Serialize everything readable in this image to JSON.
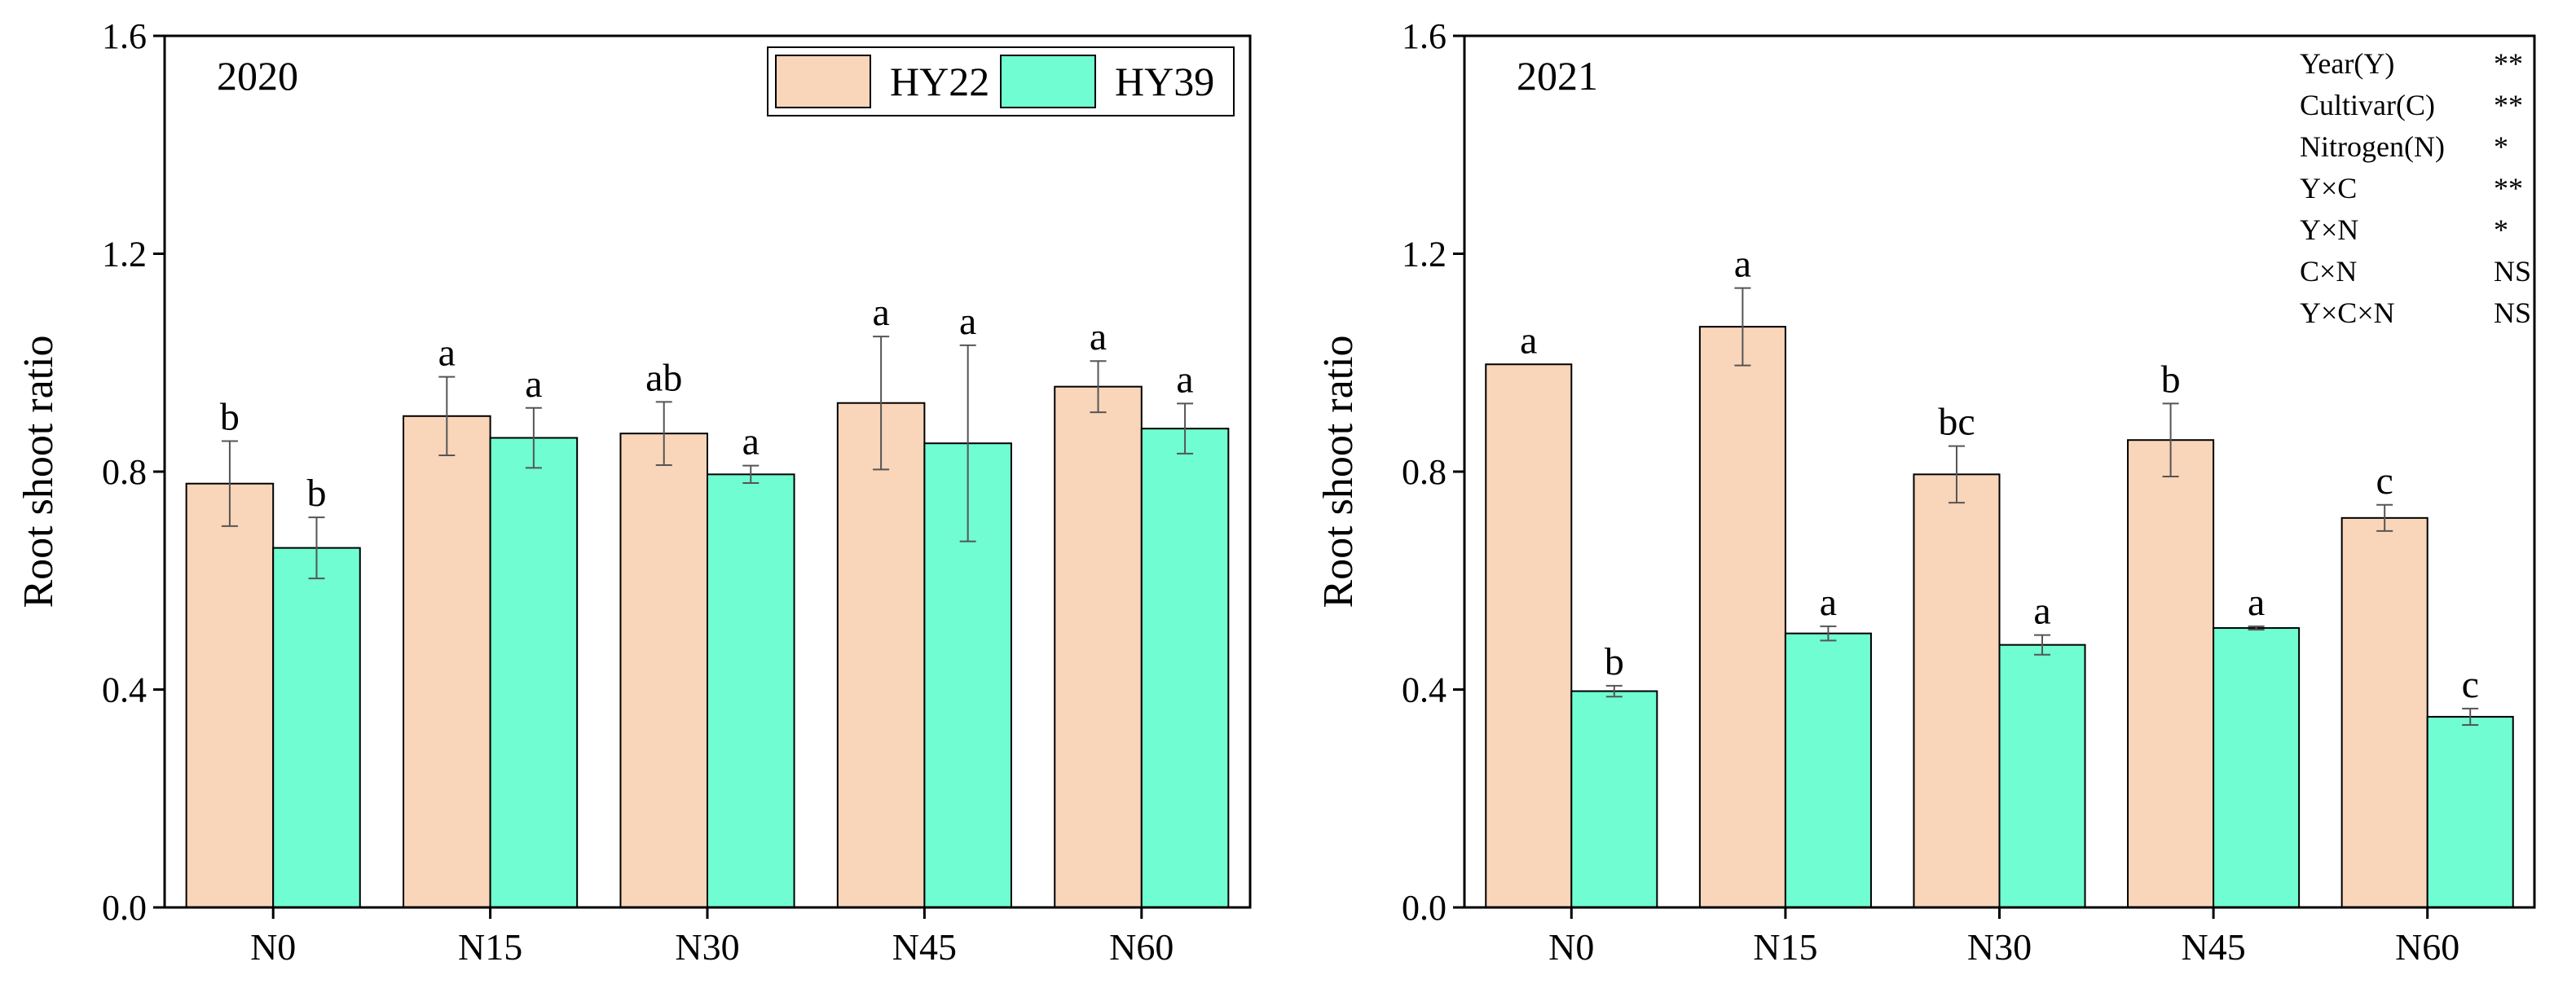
{
  "chart_data": [
    {
      "type": "bar",
      "panel_label": "2020",
      "ylabel": "Root shoot ratio",
      "xlabel": "",
      "ylim": [
        0,
        1.6
      ],
      "yticks": [
        "0.0",
        "0.4",
        "0.8",
        "1.2",
        "1.6"
      ],
      "categories": [
        "N0",
        "N15",
        "N30",
        "N45",
        "N60"
      ],
      "legend": {
        "position": "top-right",
        "entries": [
          "HY22",
          "HY39"
        ]
      },
      "series": [
        {
          "name": "HY22",
          "color": "#F9D5BA",
          "values": [
            0.778,
            0.902,
            0.87,
            0.926,
            0.956
          ],
          "errors": [
            0.078,
            0.072,
            0.058,
            0.122,
            0.047
          ],
          "letters": [
            "b",
            "a",
            "ab",
            "a",
            "a"
          ]
        },
        {
          "name": "HY39",
          "color": "#70FDD1",
          "values": [
            0.66,
            0.862,
            0.795,
            0.852,
            0.879
          ],
          "errors": [
            0.056,
            0.055,
            0.016,
            0.18,
            0.046
          ],
          "letters": [
            "b",
            "a",
            "a",
            "a",
            "a"
          ]
        }
      ]
    },
    {
      "type": "bar",
      "panel_label": "2021",
      "ylabel": "Root shoot ratio",
      "xlabel": "",
      "ylim": [
        0,
        1.6
      ],
      "yticks": [
        "0.0",
        "0.4",
        "0.8",
        "1.2",
        "1.6"
      ],
      "categories": [
        "N0",
        "N15",
        "N30",
        "N45",
        "N60"
      ],
      "series": [
        {
          "name": "HY22",
          "color": "#F9D5BA",
          "values": [
            0.997,
            1.066,
            0.795,
            0.858,
            0.715
          ],
          "errors": [
            0,
            0.071,
            0.052,
            0.067,
            0.024
          ],
          "letters": [
            "a",
            "a",
            "bc",
            "b",
            "c"
          ]
        },
        {
          "name": "HY39",
          "color": "#70FDD1",
          "values": [
            0.397,
            0.503,
            0.482,
            0.513,
            0.35
          ],
          "errors": [
            0.01,
            0.013,
            0.018,
            0.003,
            0.015
          ],
          "letters": [
            "b",
            "a",
            "a",
            "a",
            "c"
          ]
        }
      ],
      "annotations": [
        {
          "label": "Year(Y)",
          "value": "**"
        },
        {
          "label": "Cultivar(C)",
          "value": "**"
        },
        {
          "label": "Nitrogen(N)",
          "value": "*"
        },
        {
          "label": "Y×C",
          "value": "**"
        },
        {
          "label": "Y×N",
          "value": "*"
        },
        {
          "label": "C×N",
          "value": "NS"
        },
        {
          "label": "Y×C×N",
          "value": "NS"
        }
      ]
    }
  ]
}
